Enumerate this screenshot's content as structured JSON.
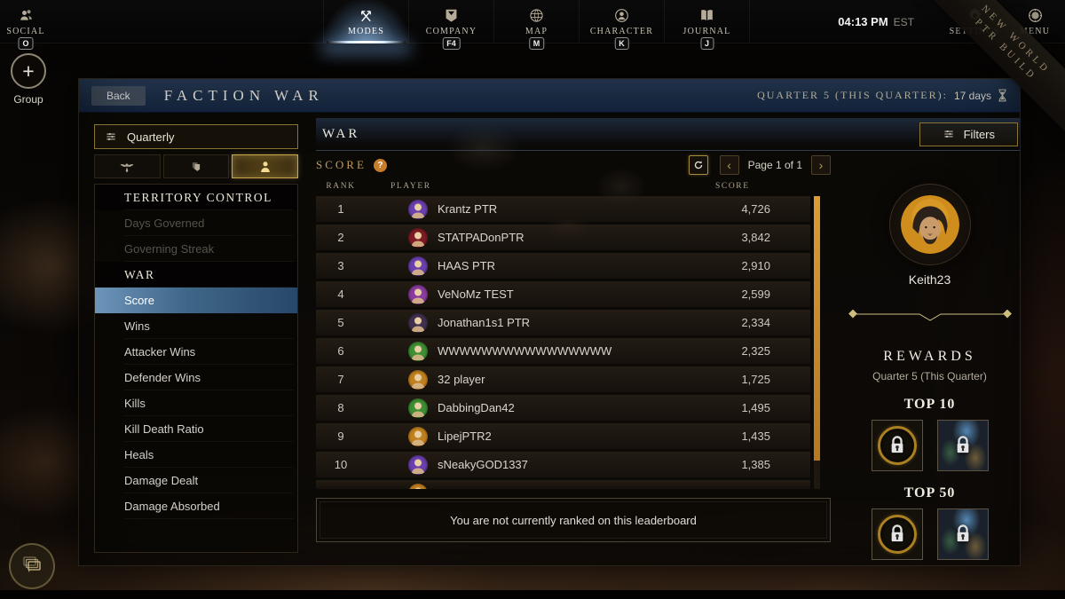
{
  "top_bar": {
    "social": {
      "label": "SOCIAL",
      "key": "O",
      "icon": "people-icon"
    },
    "tabs": [
      {
        "label": "MODES",
        "key": "",
        "icon": "crossed-arrows-icon",
        "active": true
      },
      {
        "label": "COMPANY",
        "key": "F4",
        "icon": "banner-shield-icon",
        "active": false
      },
      {
        "label": "MAP",
        "key": "M",
        "icon": "globe-icon",
        "active": false
      },
      {
        "label": "CHARACTER",
        "key": "K",
        "icon": "person-circle-icon",
        "active": false
      },
      {
        "label": "JOURNAL",
        "key": "J",
        "icon": "book-icon",
        "active": false
      }
    ],
    "clock": {
      "time": "04:13 PM",
      "zone": "EST"
    },
    "settings": {
      "label": "SETTINGS",
      "icon": "gear-icon"
    },
    "menu": {
      "label": "MENU",
      "icon": "compass-icon"
    },
    "ribbon": {
      "line1": "NEW WORLD",
      "line2": "PTR BUILD"
    }
  },
  "left_rail": {
    "group": {
      "label": "Group",
      "icon": "plus-icon"
    },
    "chat_icon": "chat-bubbles-icon"
  },
  "panel": {
    "header": {
      "back_label": "Back",
      "title": "FACTION WAR",
      "quarter_label": "QUARTER 5 (THIS QUARTER):",
      "time_remaining": "17 days",
      "hourglass_icon": "hourglass-icon"
    },
    "sidebar": {
      "period_selector": {
        "label": "Quarterly",
        "icon": "sliders-icon"
      },
      "faction_tabs": [
        {
          "icon": "winged-emblem-icon",
          "selected": false
        },
        {
          "icon": "stacked-shields-icon",
          "selected": false
        },
        {
          "icon": "player-icon",
          "selected": true
        }
      ],
      "items": [
        {
          "label": "TERRITORY CONTROL",
          "type": "header"
        },
        {
          "label": "Days Governed",
          "type": "disabled"
        },
        {
          "label": "Governing Streak",
          "type": "disabled"
        },
        {
          "label": "WAR",
          "type": "header"
        },
        {
          "label": "Score",
          "type": "selected"
        },
        {
          "label": "Wins",
          "type": "normal"
        },
        {
          "label": "Attacker Wins",
          "type": "normal"
        },
        {
          "label": "Defender Wins",
          "type": "normal"
        },
        {
          "label": "Kills",
          "type": "normal"
        },
        {
          "label": "Kill Death Ratio",
          "type": "normal"
        },
        {
          "label": "Heals",
          "type": "normal"
        },
        {
          "label": "Damage Dealt",
          "type": "normal"
        },
        {
          "label": "Damage Absorbed",
          "type": "normal"
        }
      ]
    },
    "content": {
      "section_title": "WAR",
      "filters": {
        "label": "Filters",
        "icon": "sliders-icon"
      },
      "stat_label": "SCORE",
      "help_glyph": "?",
      "refresh_icon": "refresh-icon",
      "pagination": {
        "label": "Page 1 of 1",
        "prev_icon": "chevron-left-icon",
        "next_icon": "chevron-right-icon"
      },
      "columns": [
        "RANK",
        "PLAYER",
        "SCORE"
      ],
      "rows": [
        {
          "rank": "1",
          "player": "Krantz PTR",
          "score": "4,726",
          "avatar_color": "#6b3fae"
        },
        {
          "rank": "2",
          "player": "STATPADonPTR",
          "score": "3,842",
          "avatar_color": "#7e1b24"
        },
        {
          "rank": "3",
          "player": "HAAS PTR",
          "score": "2,910",
          "avatar_color": "#6b3fae"
        },
        {
          "rank": "4",
          "player": "VeNoMz TEST",
          "score": "2,599",
          "avatar_color": "#8a3b9e"
        },
        {
          "rank": "5",
          "player": "Jonathan1s1 PTR",
          "score": "2,334",
          "avatar_color": "#41304f"
        },
        {
          "rank": "6",
          "player": "WWWWWWWWWWWWWWWW",
          "score": "2,325",
          "avatar_color": "#3f8f33"
        },
        {
          "rank": "7",
          "player": "32 player",
          "score": "1,725",
          "avatar_color": "#c2811f"
        },
        {
          "rank": "8",
          "player": "DabbingDan42",
          "score": "1,495",
          "avatar_color": "#3f8f33"
        },
        {
          "rank": "9",
          "player": "LipejPTR2",
          "score": "1,435",
          "avatar_color": "#c2811f"
        },
        {
          "rank": "10",
          "player": "sNeakyGOD1337",
          "score": "1,385",
          "avatar_color": "#6b3fae"
        }
      ],
      "footer_message": "You are not currently ranked on this leaderboard"
    },
    "profile": {
      "player_name": "Keith23",
      "rewards_title": "REWARDS",
      "rewards_subtitle": "Quarter 5 (This Quarter)",
      "tiers": [
        {
          "label": "TOP 10",
          "slots": [
            {
              "icon": "lock-icon",
              "style": "ring"
            },
            {
              "icon": "lock-icon",
              "style": "item"
            }
          ]
        },
        {
          "label": "TOP 50",
          "slots": [
            {
              "icon": "lock-icon",
              "style": "ring"
            },
            {
              "icon": "lock-icon",
              "style": "item"
            }
          ]
        }
      ]
    }
  },
  "colors": {
    "accent_gold": "#8a7434",
    "selection_blue": "#3f6788",
    "scrollbar_gold": "#c8862a",
    "help_orange": "#c87d28",
    "active_tab_glow": "#98c0e8"
  }
}
